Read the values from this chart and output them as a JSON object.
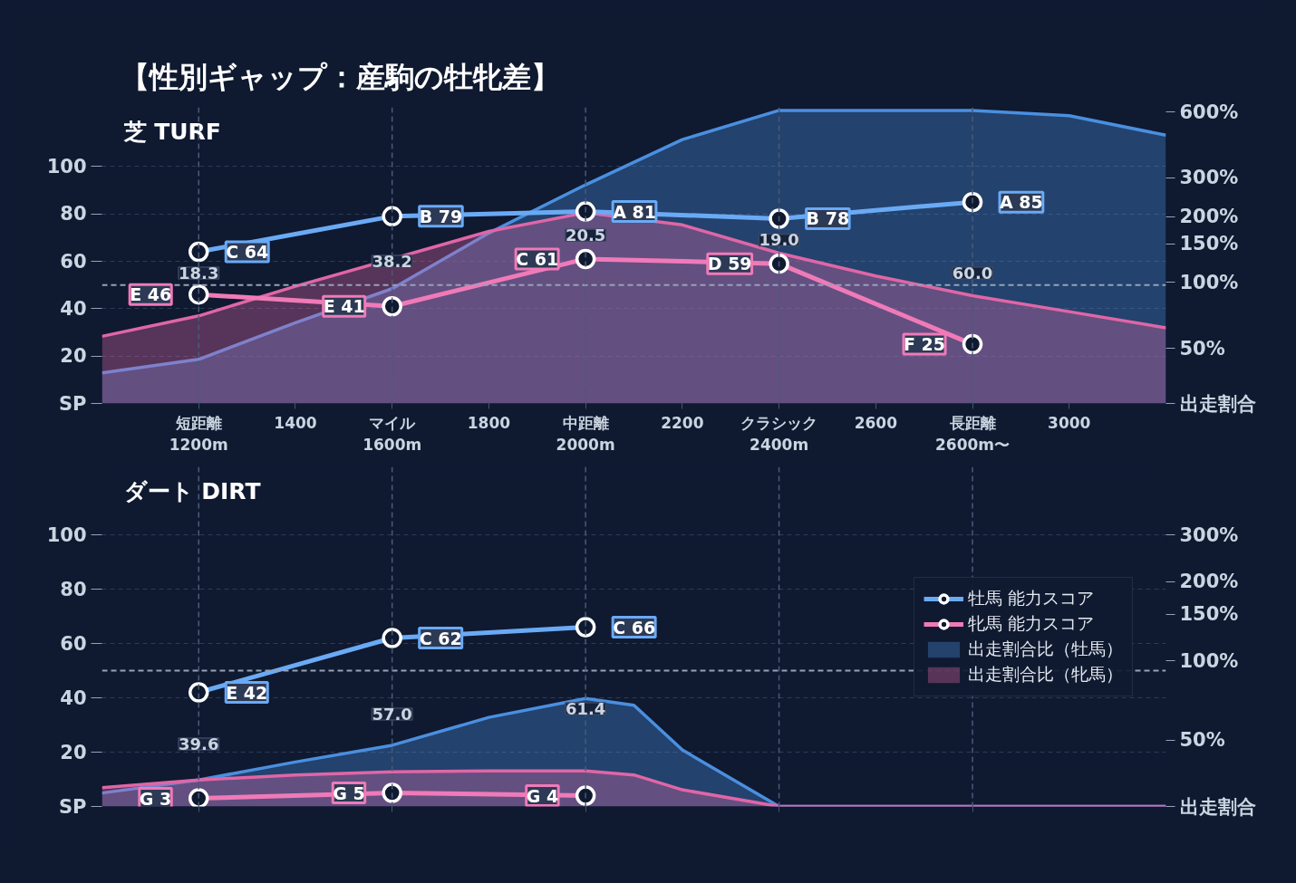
{
  "chart_data": [
    {
      "type": "line",
      "title": "【性別ギャップ：産駒の牡牝差】",
      "subtitle": "芝 TURF",
      "xlim": [
        1000,
        3200
      ],
      "xticks": [
        {
          "value": 1200,
          "label": "短距離\n1200m"
        },
        1400,
        {
          "value": 1600,
          "label": "マイル\n1600m"
        },
        1800,
        {
          "value": 2000,
          "label": "中距離\n2000m"
        },
        2200,
        {
          "value": 2400,
          "label": "クラシック\n2400m"
        },
        2600,
        {
          "value": 2800,
          "label": "長距離\n2600m〜"
        },
        3000
      ],
      "ylim": [
        0,
        125
      ],
      "yticks": [
        {
          "value": 0,
          "label": "SP"
        },
        20,
        40,
        60,
        80,
        100
      ],
      "y2lim": [
        28,
        630
      ],
      "y2ticks": [
        {
          "value": 28,
          "label": "出走割合"
        },
        {
          "value": 50,
          "label": "50%"
        },
        {
          "value": 100,
          "label": "100%"
        },
        {
          "value": 150,
          "label": "150%"
        },
        {
          "value": 200,
          "label": "200%"
        },
        {
          "value": 300,
          "label": "300%"
        },
        {
          "value": 600,
          "label": "600%"
        }
      ],
      "log": "y2",
      "grid": "y",
      "legend": false,
      "ref_lines": [
        {
          "axis": "y",
          "value": 50,
          "color": "#94a3b8",
          "line_style": "dashed"
        },
        {
          "axis": "x",
          "value": 1200,
          "color": "#4b5a78",
          "line_style": "dashed"
        },
        {
          "axis": "x",
          "value": 1600,
          "color": "#4b5a78",
          "line_style": "dashed"
        },
        {
          "axis": "x",
          "value": 2000,
          "color": "#4b5a78",
          "line_style": "dashed"
        },
        {
          "axis": "x",
          "value": 2400,
          "color": "#4b5a78",
          "line_style": "dashed"
        },
        {
          "axis": "x",
          "value": 2800,
          "color": "#4b5a78",
          "line_style": "dashed"
        }
      ],
      "annotations": [
        {
          "text": "18.3",
          "x": 1200,
          "y": 55
        },
        {
          "text": "38.2",
          "x": 1600,
          "y": 60
        },
        {
          "text": "20.5",
          "x": 2000,
          "y": 71
        },
        {
          "text": "19.0",
          "x": 2400,
          "y": 69
        },
        {
          "text": "60.0",
          "x": 2800,
          "y": 55
        }
      ],
      "series": [
        {
          "color": "#6aaaf5",
          "marker": "circle",
          "x": [
            1200,
            1600,
            2000,
            2400,
            2800
          ],
          "values": [
            64,
            79,
            81,
            78,
            85
          ],
          "value_labels": [
            "C 64",
            "B 79",
            "A 81",
            "B 78",
            "A 85"
          ]
        },
        {
          "color": "#f07ab8",
          "marker": "circle",
          "x": [
            1200,
            1600,
            2000,
            2400,
            2800
          ],
          "values": [
            46,
            41,
            61,
            59,
            25
          ],
          "value_labels": [
            "E 46",
            "E 41",
            "C 61",
            "D 59",
            "F 25"
          ]
        },
        {
          "type": "area",
          "axis": "y2",
          "color": "#4a8fe0",
          "x": [
            1000,
            1200,
            1400,
            1600,
            1800,
            2000,
            2200,
            2400,
            2600,
            2800,
            3000,
            3200
          ],
          "values": [
            38.6,
            44.5,
            65.4,
            93.6,
            168,
            279,
            449,
            610,
            610,
            610,
            577,
            470
          ]
        },
        {
          "type": "area",
          "axis": "y2",
          "color": "#e066a6",
          "x": [
            1000,
            1200,
            1400,
            1600,
            1800,
            2000,
            2200,
            2400,
            2600,
            2800,
            3000,
            3200
          ],
          "values": [
            56.7,
            70.3,
            96,
            null,
            171,
            208,
            183,
            136,
            107,
            87,
            73.5,
            62
          ]
        }
      ]
    },
    {
      "type": "line",
      "subtitle": "ダート DIRT",
      "xlim": [
        1000,
        3200
      ],
      "xticks": [
        1200,
        1600,
        2000,
        2400,
        2800
      ],
      "tick_labels": "y",
      "ylim": [
        0,
        125
      ],
      "yticks": [
        {
          "value": 0,
          "label": "SP"
        },
        20,
        40,
        60,
        80,
        100
      ],
      "y2lim": [
        28,
        545
      ],
      "y2ticks": [
        {
          "value": 28,
          "label": "出走割合"
        },
        {
          "value": 50,
          "label": "50%"
        },
        {
          "value": 100,
          "label": "100%"
        },
        {
          "value": 150,
          "label": "150%"
        },
        {
          "value": 200,
          "label": "200%"
        },
        {
          "value": 300,
          "label": "300%"
        }
      ],
      "log": "y2",
      "grid": "y",
      "legend": "right",
      "ref_lines": [
        {
          "axis": "y",
          "value": 50,
          "color": "#94a3b8",
          "line_style": "dashed"
        },
        {
          "axis": "x",
          "value": 1200,
          "color": "#4b5a78",
          "line_style": "dashed"
        },
        {
          "axis": "x",
          "value": 1600,
          "color": "#4b5a78",
          "line_style": "dashed"
        },
        {
          "axis": "x",
          "value": 2000,
          "color": "#4b5a78",
          "line_style": "dashed"
        },
        {
          "axis": "x",
          "value": 2400,
          "color": "#4b5a78",
          "line_style": "dashed"
        },
        {
          "axis": "x",
          "value": 2800,
          "color": "#4b5a78",
          "line_style": "dashed"
        }
      ],
      "annotations": [
        {
          "text": "39.6",
          "x": 1200,
          "y": 23
        },
        {
          "text": "57.0",
          "x": 1600,
          "y": 34
        },
        {
          "text": "61.4",
          "x": 2000,
          "y": 36
        }
      ],
      "series": [
        {
          "name": "牡馬 能力スコア",
          "color": "#6aaaf5",
          "marker": "circle",
          "x": [
            1200,
            1600,
            2000
          ],
          "values": [
            42,
            62,
            66
          ],
          "value_labels": [
            "E 42",
            "C 62",
            "C 66"
          ]
        },
        {
          "name": "牝馬 能力スコア",
          "color": "#f07ab8",
          "marker": "circle",
          "x": [
            1200,
            1600,
            2000
          ],
          "values": [
            3,
            5,
            4
          ],
          "value_labels": [
            "G 3",
            "G 5",
            "G 4"
          ]
        },
        {
          "type": "area",
          "axis": "y2",
          "name": "出走割合比（牡馬）",
          "color": "#4a8fe0",
          "x": [
            1000,
            1200,
            1400,
            1600,
            1800,
            2000,
            2100,
            2200,
            2400,
            2600,
            2800,
            3000,
            3200
          ],
          "values": [
            31.5,
            35.3,
            41.3,
            47.8,
            61,
            72,
            67.8,
            45.9,
            28,
            28,
            28,
            28,
            28
          ]
        },
        {
          "type": "area",
          "axis": "y2",
          "name": "出走割合比（牝馬）",
          "color": "#e066a6",
          "x": [
            1000,
            1200,
            1400,
            1600,
            1800,
            2000,
            2100,
            2200,
            2400,
            2600,
            2800,
            3000,
            3200
          ],
          "values": [
            33,
            35.3,
            36.9,
            37.9,
            38.2,
            38.2,
            36.9,
            32.4,
            28,
            28,
            28,
            28,
            28
          ]
        }
      ]
    }
  ]
}
